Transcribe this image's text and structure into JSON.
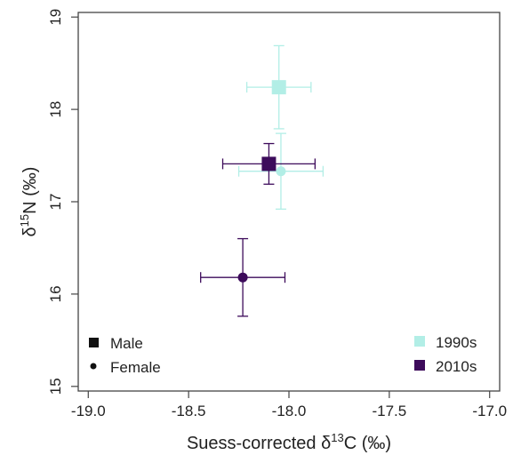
{
  "chart_data": {
    "type": "scatter",
    "xlabel": {
      "prefix": "Suess-corrected δ",
      "sup": "13",
      "suffix": "C (‰)"
    },
    "ylabel": {
      "prefix": "δ",
      "sup": "15",
      "suffix": "N (‰)"
    },
    "xlim": [
      -19.05,
      -16.95
    ],
    "ylim": [
      14.95,
      19.05
    ],
    "xticks": [
      -19.0,
      -18.5,
      -18.0,
      -17.5,
      -17.0
    ],
    "xtick_labels": [
      "-19.0",
      "-18.5",
      "-18.0",
      "-17.5",
      "-17.0"
    ],
    "yticks": [
      15,
      16,
      17,
      18,
      19
    ],
    "ytick_labels": [
      "15",
      "16",
      "17",
      "18",
      "19"
    ],
    "grid": false,
    "colors": {
      "1990s": "#b2eee6",
      "2010s": "#3d0b5b"
    },
    "points": [
      {
        "decade": "1990s",
        "sex": "Male",
        "x": -18.05,
        "y": 18.24,
        "xerr": 0.16,
        "yerr": 0.45
      },
      {
        "decade": "1990s",
        "sex": "Female",
        "x": -18.04,
        "y": 17.33,
        "xerr": 0.21,
        "yerr": 0.41
      },
      {
        "decade": "2010s",
        "sex": "Male",
        "x": -18.1,
        "y": 17.41,
        "xerr": 0.23,
        "yerr": 0.22
      },
      {
        "decade": "2010s",
        "sex": "Female",
        "x": -18.23,
        "y": 16.18,
        "xerr": 0.21,
        "yerr": 0.42
      }
    ],
    "legend": {
      "shape_entries": [
        {
          "label": "Male",
          "shape": "square"
        },
        {
          "label": "Female",
          "shape": "circle"
        }
      ],
      "color_entries": [
        {
          "label": "1990s",
          "color": "#b2eee6"
        },
        {
          "label": "2010s",
          "color": "#3d0b5b"
        }
      ],
      "shape_placement": "bottom-left",
      "color_placement": "bottom-right"
    }
  }
}
